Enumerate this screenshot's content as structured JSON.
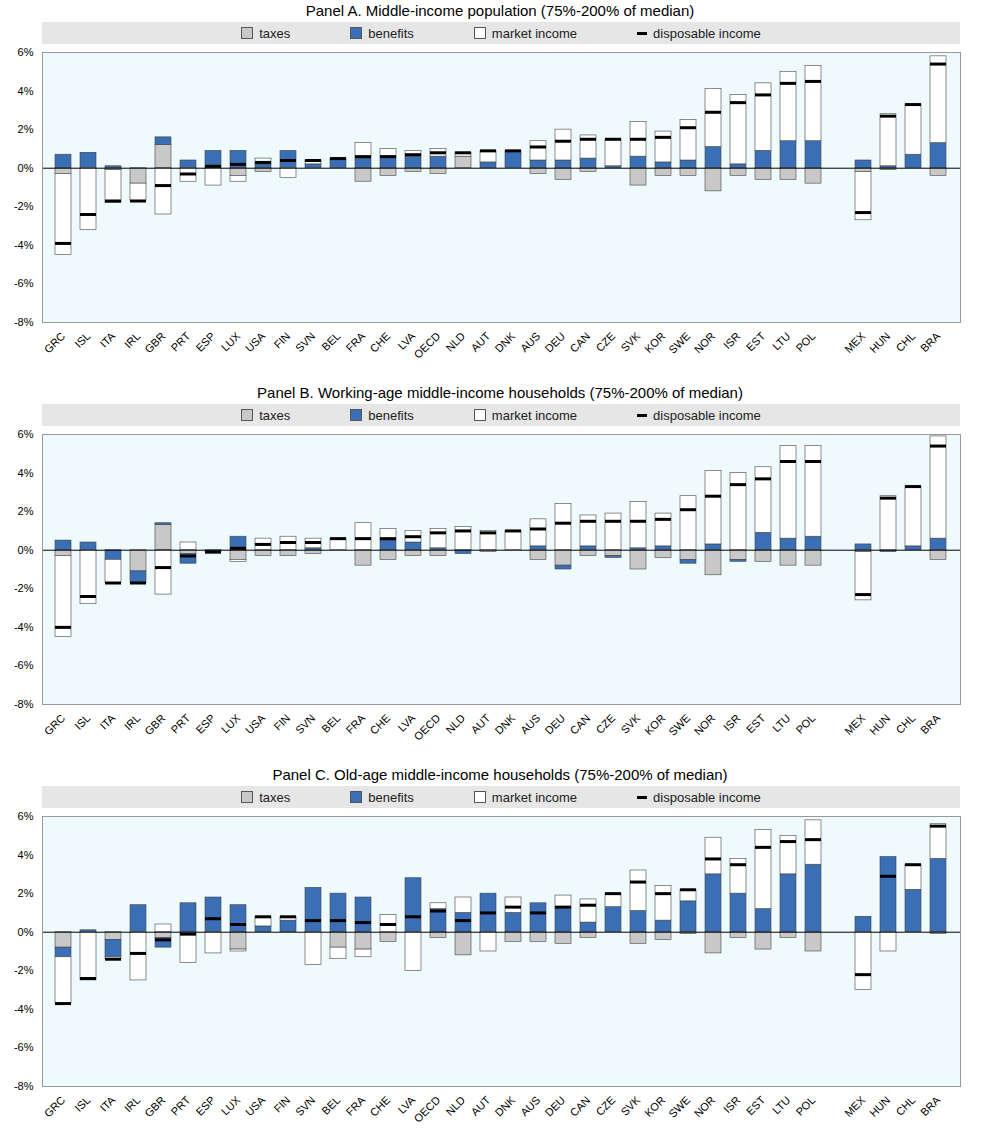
{
  "chart_data": [
    {
      "type": "bar",
      "title": "Panel A. Middle-income population (75%-200% of median)",
      "stacked": true,
      "grid": false,
      "legend": "top",
      "categories": [
        "GRC",
        "ISL",
        "ITA",
        "IRL",
        "GBR",
        "PRT",
        "ESP",
        "LUX",
        "USA",
        "FIN",
        "SVN",
        "BEL",
        "FRA",
        "CHE",
        "LVA",
        "OECD",
        "NLD",
        "AUT",
        "DNK",
        "AUS",
        "DEU",
        "CAN",
        "CZE",
        "SVK",
        "KOR",
        "SWE",
        "NOR",
        "ISR",
        "EST",
        "LTU",
        "POL",
        null,
        "MEX",
        "HUN",
        "CHL",
        "BRA"
      ],
      "ylim": [
        -8,
        6
      ],
      "yticks": [
        {
          "value": -8,
          "label": "-8%"
        },
        {
          "value": -6,
          "label": "-6%"
        },
        {
          "value": -4,
          "label": "-4%"
        },
        {
          "value": -2,
          "label": "-2%"
        },
        {
          "value": 0,
          "label": "0%"
        },
        {
          "value": 2,
          "label": "2%"
        },
        {
          "value": 4,
          "label": "4%"
        },
        {
          "value": 6,
          "label": "6%"
        }
      ],
      "series": [
        {
          "name": "taxes",
          "color": "#c8c8c8",
          "values": [
            -0.3,
            0,
            -0.1,
            -0.8,
            1.2,
            0,
            0,
            -0.4,
            -0.2,
            0,
            0,
            0,
            -0.7,
            -0.4,
            -0.2,
            -0.3,
            0.6,
            0,
            0,
            -0.3,
            -0.6,
            -0.2,
            0,
            -0.9,
            -0.4,
            -0.4,
            -1.2,
            -0.4,
            -0.6,
            -0.6,
            -0.8,
            null,
            -0.2,
            -0.1,
            0,
            -0.4
          ]
        },
        {
          "name": "benefits",
          "color": "#3a6fb5",
          "values": [
            0.7,
            0.8,
            0.1,
            0,
            0.4,
            0.4,
            0.9,
            0.9,
            0.2,
            0.9,
            0.2,
            0.5,
            0.5,
            0.6,
            0.6,
            0.6,
            0,
            0.3,
            0.9,
            0.4,
            0.4,
            0.5,
            0.1,
            0.6,
            0.3,
            0.4,
            1.1,
            0.2,
            0.9,
            1.4,
            1.4,
            null,
            0.4,
            0.1,
            0.7,
            1.3
          ]
        },
        {
          "name": "market income",
          "color": "#ffffff",
          "values": [
            -4.2,
            -3.2,
            -1.7,
            -0.9,
            -2.4,
            -0.7,
            -0.9,
            -0.3,
            0.3,
            -0.5,
            0.2,
            0,
            0.8,
            0.4,
            0.3,
            0.4,
            0.2,
            0.6,
            0,
            1.0,
            1.6,
            1.2,
            1.4,
            1.8,
            1.6,
            2.1,
            3.0,
            3.6,
            3.5,
            3.6,
            3.9,
            null,
            -2.5,
            2.7,
            2.6,
            4.5
          ]
        },
        {
          "name": "disposable income",
          "type": "tick",
          "color": "#000000",
          "values": [
            -3.9,
            -2.4,
            -1.7,
            -1.7,
            -0.9,
            -0.3,
            0.1,
            0.2,
            0.3,
            0.4,
            0.4,
            0.5,
            0.6,
            0.6,
            0.7,
            0.8,
            0.8,
            0.9,
            0.9,
            1.1,
            1.4,
            1.5,
            1.5,
            1.5,
            1.6,
            2.1,
            2.9,
            3.4,
            3.8,
            4.4,
            4.5,
            null,
            -2.3,
            2.7,
            3.3,
            5.4
          ]
        }
      ]
    },
    {
      "type": "bar",
      "title": "Panel B. Working-age middle-income households (75%-200% of median)",
      "stacked": true,
      "grid": false,
      "legend": "top",
      "categories": [
        "GRC",
        "ISL",
        "ITA",
        "IRL",
        "GBR",
        "PRT",
        "ESP",
        "LUX",
        "USA",
        "FIN",
        "SVN",
        "BEL",
        "FRA",
        "CHE",
        "LVA",
        "OECD",
        "NLD",
        "AUT",
        "DNK",
        "AUS",
        "DEU",
        "CAN",
        "CZE",
        "SVK",
        "KOR",
        "SWE",
        "NOR",
        "ISR",
        "EST",
        "LTU",
        "POL",
        null,
        "MEX",
        "HUN",
        "CHL",
        "BRA"
      ],
      "ylim": [
        -8,
        6
      ],
      "yticks": [
        {
          "value": -8,
          "label": "-8%"
        },
        {
          "value": -6,
          "label": "-6%"
        },
        {
          "value": -4,
          "label": "-4%"
        },
        {
          "value": -2,
          "label": "-2%"
        },
        {
          "value": 0,
          "label": "0%"
        },
        {
          "value": 2,
          "label": "2%"
        },
        {
          "value": 4,
          "label": "4%"
        },
        {
          "value": 6,
          "label": "6%"
        }
      ],
      "series": [
        {
          "name": "taxes",
          "color": "#c8c8c8",
          "values": [
            -0.3,
            0,
            0,
            -1.1,
            1.3,
            -0.2,
            0,
            -0.5,
            -0.3,
            -0.3,
            -0.2,
            0,
            -0.8,
            -0.5,
            -0.3,
            -0.3,
            0,
            -0.1,
            0,
            -0.5,
            -0.8,
            -0.3,
            -0.3,
            -1.0,
            -0.4,
            -0.5,
            -1.3,
            -0.5,
            -0.6,
            -0.8,
            -0.8,
            null,
            -0.1,
            0,
            0,
            -0.5
          ]
        },
        {
          "name": "benefits",
          "color": "#3a6fb5",
          "values": [
            0.5,
            0.4,
            -0.5,
            -0.6,
            0.1,
            -0.5,
            -0.1,
            0.7,
            0,
            0,
            0.1,
            0,
            0,
            0.5,
            0.4,
            0.1,
            -0.2,
            0,
            0,
            0.2,
            -0.2,
            0.2,
            -0.1,
            0.1,
            0.2,
            -0.2,
            0.3,
            -0.1,
            0.9,
            0.6,
            0.7,
            null,
            0.3,
            -0.1,
            0.2,
            0.6
          ]
        },
        {
          "name": "market income",
          "color": "#ffffff",
          "values": [
            -4.2,
            -2.8,
            -1.2,
            0,
            -2.3,
            0.4,
            0,
            -0.1,
            0.6,
            0.7,
            0.5,
            0.6,
            1.4,
            0.6,
            0.6,
            1.0,
            1.2,
            1.0,
            1.0,
            1.4,
            2.4,
            1.6,
            1.9,
            2.4,
            1.7,
            2.8,
            3.8,
            4.0,
            3.4,
            4.8,
            4.7,
            null,
            -2.5,
            2.8,
            3.1,
            5.3
          ]
        },
        {
          "name": "disposable income",
          "type": "tick",
          "color": "#000000",
          "values": [
            -4.0,
            -2.4,
            -1.7,
            -1.7,
            -0.9,
            -0.3,
            -0.1,
            0.1,
            0.3,
            0.4,
            0.4,
            0.6,
            0.6,
            0.6,
            0.7,
            0.9,
            1.0,
            0.9,
            1.0,
            1.1,
            1.4,
            1.5,
            1.5,
            1.5,
            1.6,
            2.1,
            2.8,
            3.4,
            3.7,
            4.6,
            4.6,
            null,
            -2.3,
            2.7,
            3.3,
            5.4
          ]
        }
      ]
    },
    {
      "type": "bar",
      "title": "Panel C. Old-age middle-income households (75%-200% of median)",
      "stacked": true,
      "grid": false,
      "legend": "top",
      "categories": [
        "GRC",
        "ISL",
        "ITA",
        "IRL",
        "GBR",
        "PRT",
        "ESP",
        "LUX",
        "USA",
        "FIN",
        "SVN",
        "BEL",
        "FRA",
        "CHE",
        "LVA",
        "OECD",
        "NLD",
        "AUT",
        "DNK",
        "AUS",
        "DEU",
        "CAN",
        "CZE",
        "SVK",
        "KOR",
        "SWE",
        "NOR",
        "ISR",
        "EST",
        "LTU",
        "POL",
        null,
        "MEX",
        "HUN",
        "CHL",
        "BRA"
      ],
      "ylim": [
        -8,
        6
      ],
      "yticks": [
        {
          "value": -8,
          "label": "-8%"
        },
        {
          "value": -6,
          "label": "-6%"
        },
        {
          "value": -4,
          "label": "-4%"
        },
        {
          "value": -2,
          "label": "-2%"
        },
        {
          "value": 0,
          "label": "0%"
        },
        {
          "value": 2,
          "label": "2%"
        },
        {
          "value": 4,
          "label": "4%"
        },
        {
          "value": 6,
          "label": "6%"
        }
      ],
      "series": [
        {
          "name": "taxes",
          "color": "#c8c8c8",
          "values": [
            -0.8,
            0,
            -0.4,
            0,
            -0.3,
            -0.1,
            0,
            -0.9,
            0,
            0,
            0,
            -0.8,
            -0.9,
            -0.5,
            0,
            -0.3,
            -1.2,
            0,
            -0.5,
            -0.5,
            -0.6,
            -0.3,
            0,
            -0.6,
            -0.4,
            -0.1,
            -1.1,
            -0.3,
            -0.9,
            -0.3,
            -1.0,
            null,
            0,
            0,
            0,
            -0.1
          ]
        },
        {
          "name": "benefits",
          "color": "#3a6fb5",
          "values": [
            -0.5,
            0.1,
            -0.9,
            1.4,
            -0.5,
            1.5,
            1.8,
            1.4,
            0.3,
            0.6,
            2.3,
            2.0,
            1.8,
            0,
            2.8,
            1.2,
            1.0,
            2.0,
            1.0,
            1.5,
            1.2,
            0.5,
            1.3,
            1.1,
            0.6,
            1.6,
            3.0,
            2.0,
            1.2,
            3.0,
            3.5,
            null,
            0.8,
            3.9,
            2.2,
            3.8
          ]
        },
        {
          "name": "market income",
          "color": "#ffffff",
          "values": [
            -2.4,
            -2.5,
            -0.1,
            -2.5,
            0.4,
            -1.5,
            -1.1,
            -0.1,
            0.5,
            0.2,
            -1.7,
            -0.6,
            -0.4,
            0.9,
            -2.0,
            0.3,
            0.8,
            -1.0,
            0.8,
            0,
            0.7,
            1.2,
            0.7,
            2.1,
            1.8,
            0.6,
            1.9,
            1.8,
            4.1,
            2.0,
            2.3,
            null,
            -3.0,
            -1.0,
            1.3,
            1.8
          ]
        },
        {
          "name": "disposable income",
          "type": "tick",
          "color": "#000000",
          "values": [
            -3.7,
            -2.4,
            -1.4,
            -1.1,
            -0.4,
            -0.1,
            0.7,
            0.4,
            0.8,
            0.8,
            0.6,
            0.6,
            0.5,
            0.4,
            0.8,
            1.1,
            0.6,
            1.0,
            1.3,
            1.0,
            1.3,
            1.4,
            2.0,
            2.6,
            2.0,
            2.2,
            3.8,
            3.5,
            4.4,
            4.7,
            4.8,
            null,
            -2.2,
            2.9,
            3.5,
            5.5
          ]
        }
      ]
    }
  ]
}
